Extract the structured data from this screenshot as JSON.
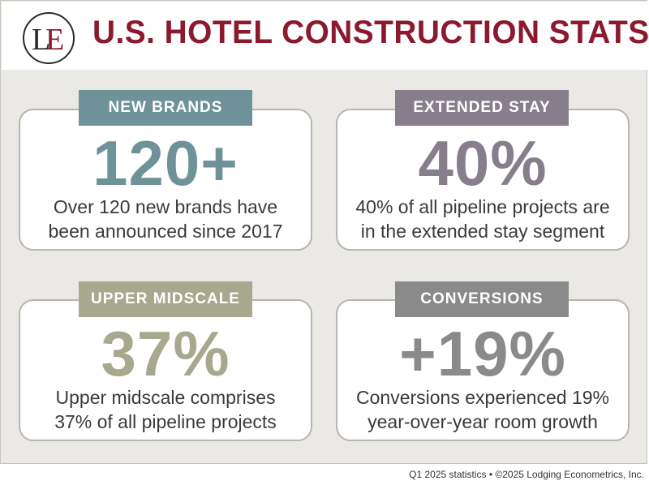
{
  "header": {
    "title": "U.S. HOTEL CONSTRUCTION STATS",
    "logo_text": "LE",
    "title_color": "#8c1a2e"
  },
  "cards": [
    {
      "label": "NEW BRANDS",
      "stat": "120+",
      "description_line1": "Over 120 new brands have",
      "description_line2": "been announced since 2017",
      "color": "#6f9299"
    },
    {
      "label": "EXTENDED STAY",
      "stat": "40%",
      "description_line1": "40% of all pipeline projects are",
      "description_line2": "in the extended stay segment",
      "color": "#877e8c"
    },
    {
      "label": "UPPER MIDSCALE",
      "stat": "37%",
      "description_line1": "Upper midscale comprises",
      "description_line2": "37% of all pipeline projects",
      "color": "#a7a88d"
    },
    {
      "label": "CONVERSIONS",
      "stat": "+19%",
      "description_line1": "Conversions experienced 19%",
      "description_line2": "year-over-year room growth",
      "color": "#8a8a8a"
    }
  ],
  "footer": {
    "text": "Q1 2025 statistics • ©2025 Lodging Econometrics, Inc."
  }
}
